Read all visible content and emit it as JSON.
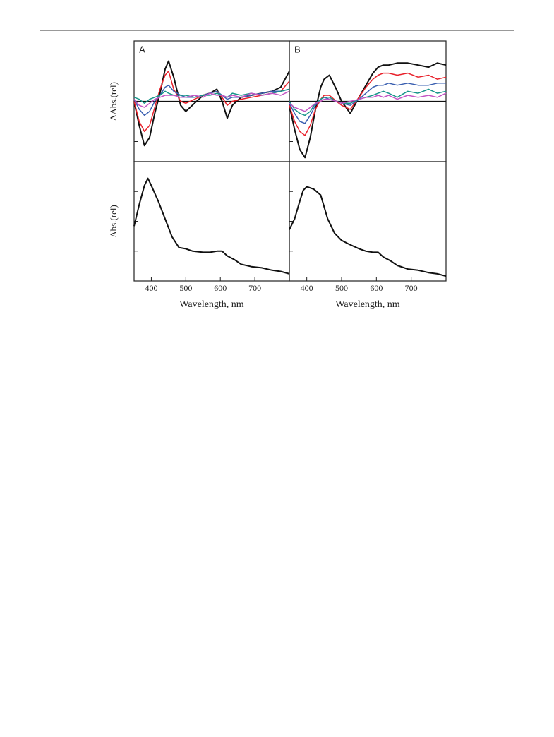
{
  "chart_data": [
    {
      "type": "line",
      "panel_label": "A",
      "ylabel": "ΔAbs.(rel)",
      "x": [
        350,
        365,
        380,
        395,
        410,
        425,
        440,
        450,
        465,
        485,
        500,
        525,
        550,
        570,
        590,
        605,
        620,
        635,
        660,
        690,
        720,
        750,
        775,
        800
      ],
      "xlim": [
        350,
        800
      ],
      "ylim": [
        -1.5,
        1.5
      ],
      "yticks": [
        -1,
        0,
        1
      ],
      "zero_line": true,
      "series": [
        {
          "color": "#111111",
          "values": [
            0,
            -0.6,
            -1.1,
            -0.9,
            -0.3,
            0.2,
            0.8,
            1.0,
            0.6,
            -0.1,
            -0.25,
            -0.05,
            0.15,
            0.2,
            0.3,
            0.0,
            -0.42,
            -0.1,
            0.1,
            0.15,
            0.2,
            0.25,
            0.35,
            0.75
          ]
        },
        {
          "color": "#e8202a",
          "values": [
            0,
            -0.5,
            -0.75,
            -0.6,
            -0.15,
            0.3,
            0.65,
            0.75,
            0.3,
            0.0,
            -0.05,
            0.05,
            0.15,
            0.2,
            0.25,
            0.1,
            -0.1,
            0.0,
            0.05,
            0.1,
            0.15,
            0.2,
            0.25,
            0.5
          ]
        },
        {
          "color": "#3a5fb0",
          "values": [
            0.05,
            -0.2,
            -0.35,
            -0.25,
            0.0,
            0.15,
            0.35,
            0.4,
            0.25,
            0.15,
            0.1,
            0.1,
            0.15,
            0.2,
            0.25,
            0.15,
            0.05,
            0.1,
            0.1,
            0.15,
            0.2,
            0.25,
            0.25,
            0.3
          ]
        },
        {
          "color": "#17958a",
          "values": [
            0.1,
            0.05,
            -0.05,
            0.05,
            0.1,
            0.15,
            0.25,
            0.2,
            0.15,
            0.15,
            0.15,
            0.1,
            0.15,
            0.15,
            0.2,
            0.15,
            0.1,
            0.2,
            0.15,
            0.2,
            0.15,
            0.2,
            0.25,
            0.3
          ]
        },
        {
          "color": "#c455c4",
          "values": [
            0.05,
            -0.1,
            -0.15,
            -0.05,
            0.05,
            0.1,
            0.15,
            0.15,
            0.15,
            0.1,
            0.1,
            0.15,
            0.1,
            0.2,
            0.15,
            0.15,
            0.1,
            0.15,
            0.1,
            0.2,
            0.15,
            0.2,
            0.15,
            0.25
          ]
        }
      ]
    },
    {
      "type": "line",
      "ylabel": "Abs.(rel)",
      "xlabel": "Wavelength, nm",
      "x": [
        350,
        365,
        380,
        390,
        400,
        420,
        440,
        460,
        480,
        500,
        520,
        550,
        570,
        590,
        605,
        620,
        640,
        660,
        690,
        720,
        750,
        775,
        800
      ],
      "xlim": [
        350,
        800
      ],
      "xticks": [
        400,
        500,
        600,
        700
      ],
      "ylim": [
        0,
        1
      ],
      "yticks": [
        0.25,
        0.5,
        0.75
      ],
      "series": [
        {
          "color": "#111111",
          "values": [
            0.46,
            0.64,
            0.8,
            0.86,
            0.8,
            0.67,
            0.52,
            0.37,
            0.28,
            0.27,
            0.25,
            0.24,
            0.24,
            0.25,
            0.25,
            0.21,
            0.18,
            0.14,
            0.12,
            0.11,
            0.09,
            0.08,
            0.06
          ]
        }
      ]
    },
    {
      "type": "line",
      "panel_label": "B",
      "x": [
        350,
        365,
        380,
        395,
        410,
        425,
        440,
        450,
        465,
        485,
        500,
        525,
        550,
        570,
        590,
        605,
        620,
        635,
        660,
        690,
        720,
        750,
        775,
        800
      ],
      "xlim": [
        350,
        800
      ],
      "ylim": [
        -1.5,
        1.5
      ],
      "yticks": [
        -1,
        0,
        1
      ],
      "zero_line": true,
      "series": [
        {
          "color": "#111111",
          "values": [
            -0.1,
            -0.7,
            -1.2,
            -1.4,
            -0.9,
            -0.2,
            0.35,
            0.55,
            0.65,
            0.3,
            0.0,
            -0.3,
            0.1,
            0.4,
            0.7,
            0.85,
            0.9,
            0.9,
            0.95,
            0.95,
            0.9,
            0.85,
            0.95,
            0.9
          ]
        },
        {
          "color": "#e8202a",
          "values": [
            -0.1,
            -0.5,
            -0.75,
            -0.85,
            -0.6,
            -0.2,
            0.05,
            0.15,
            0.15,
            0.0,
            -0.1,
            -0.2,
            0.1,
            0.35,
            0.55,
            0.65,
            0.7,
            0.7,
            0.65,
            0.7,
            0.6,
            0.65,
            0.55,
            0.6
          ]
        },
        {
          "color": "#3a5fb0",
          "values": [
            -0.05,
            -0.3,
            -0.5,
            -0.55,
            -0.35,
            -0.1,
            0.05,
            0.1,
            0.05,
            0.0,
            -0.05,
            -0.1,
            0.05,
            0.2,
            0.35,
            0.4,
            0.4,
            0.45,
            0.4,
            0.45,
            0.4,
            0.4,
            0.45,
            0.45
          ]
        },
        {
          "color": "#17958a",
          "values": [
            0,
            -0.2,
            -0.3,
            -0.35,
            -0.25,
            -0.05,
            0.05,
            0.1,
            0.1,
            0.0,
            -0.05,
            -0.05,
            0.05,
            0.1,
            0.15,
            0.2,
            0.25,
            0.2,
            0.1,
            0.25,
            0.2,
            0.3,
            0.2,
            0.25
          ]
        },
        {
          "color": "#c455c4",
          "values": [
            -0.05,
            -0.15,
            -0.2,
            -0.25,
            -0.15,
            -0.05,
            0.0,
            0.05,
            0.05,
            0.0,
            -0.05,
            0.0,
            0.05,
            0.1,
            0.1,
            0.15,
            0.1,
            0.15,
            0.05,
            0.15,
            0.1,
            0.15,
            0.1,
            0.2
          ]
        }
      ]
    },
    {
      "type": "line",
      "xlabel": "Wavelength, nm",
      "x": [
        350,
        365,
        380,
        390,
        400,
        420,
        440,
        460,
        480,
        500,
        520,
        550,
        570,
        590,
        605,
        620,
        640,
        660,
        690,
        720,
        750,
        775,
        800
      ],
      "xlim": [
        350,
        800
      ],
      "xticks": [
        400,
        500,
        600,
        700
      ],
      "ylim": [
        0,
        1
      ],
      "yticks": [
        0.25,
        0.5,
        0.75
      ],
      "series": [
        {
          "color": "#111111",
          "values": [
            0.43,
            0.52,
            0.67,
            0.76,
            0.79,
            0.77,
            0.72,
            0.52,
            0.4,
            0.34,
            0.31,
            0.27,
            0.25,
            0.24,
            0.24,
            0.2,
            0.17,
            0.13,
            0.1,
            0.09,
            0.07,
            0.06,
            0.04
          ]
        }
      ]
    }
  ]
}
